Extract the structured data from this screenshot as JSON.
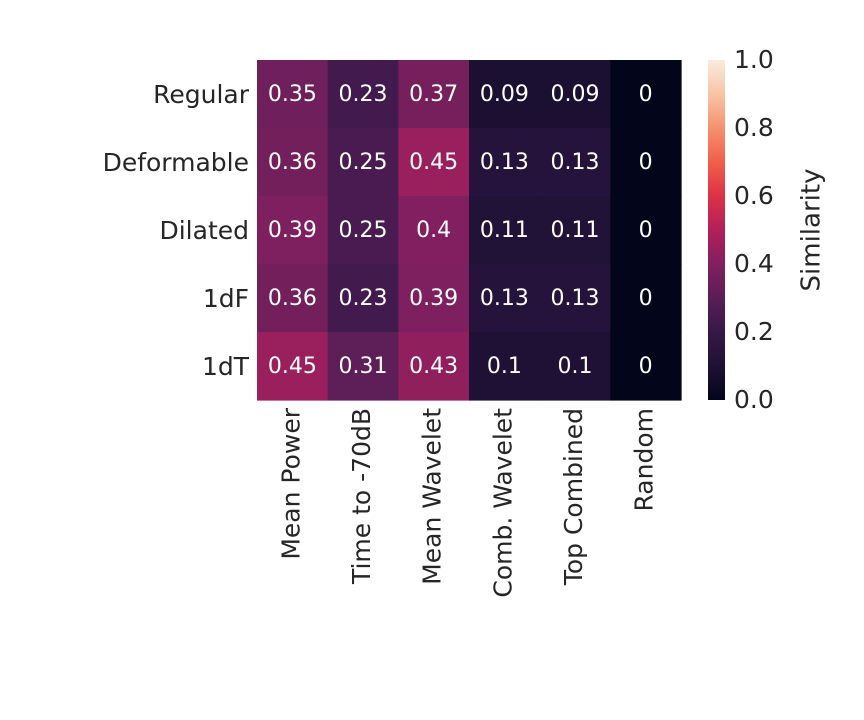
{
  "chart_data": {
    "type": "heatmap",
    "rows": [
      "Regular",
      "Deformable",
      "Dilated",
      "1dF",
      "1dT"
    ],
    "columns": [
      "Mean Power",
      "Time to -70dB",
      "Mean Wavelet",
      "Comb. Wavelet",
      "Top Combined",
      "Random"
    ],
    "values": [
      [
        0.35,
        0.23,
        0.37,
        0.09,
        0.09,
        0
      ],
      [
        0.36,
        0.25,
        0.45,
        0.13,
        0.13,
        0
      ],
      [
        0.39,
        0.25,
        0.4,
        0.11,
        0.11,
        0
      ],
      [
        0.36,
        0.23,
        0.39,
        0.13,
        0.13,
        0
      ],
      [
        0.45,
        0.31,
        0.43,
        0.1,
        0.1,
        0
      ]
    ],
    "value_labels": [
      [
        "0.35",
        "0.23",
        "0.37",
        "0.09",
        "0.09",
        "0"
      ],
      [
        "0.36",
        "0.25",
        "0.45",
        "0.13",
        "0.13",
        "0"
      ],
      [
        "0.39",
        "0.25",
        "0.4",
        "0.11",
        "0.11",
        "0"
      ],
      [
        "0.36",
        "0.23",
        "0.39",
        "0.13",
        "0.13",
        "0"
      ],
      [
        "0.45",
        "0.31",
        "0.43",
        "0.1",
        "0.1",
        "0"
      ]
    ],
    "colorbar": {
      "label": "Similarity",
      "range": [
        0,
        1
      ],
      "ticks": [
        "0.0",
        "0.2",
        "0.4",
        "0.6",
        "0.8",
        "1.0"
      ],
      "colormap": "rocket"
    },
    "title": "",
    "grid": false
  }
}
